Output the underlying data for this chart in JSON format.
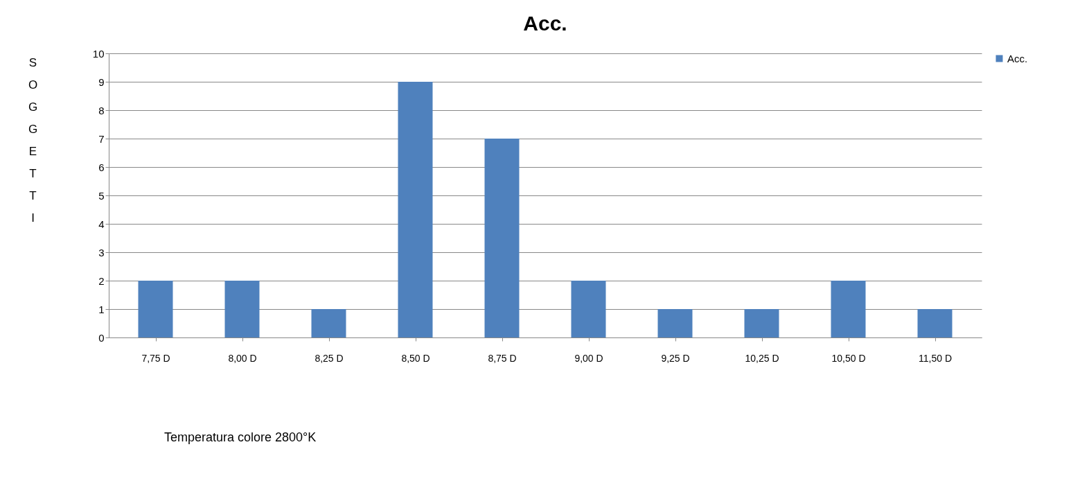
{
  "chart_data": {
    "type": "bar",
    "title": "Acc.",
    "ylabel": "SOGGETTI",
    "categories": [
      "7,75 D",
      "8,00 D",
      "8,25 D",
      "8,50 D",
      "8,75 D",
      "9,00 D",
      "9,25 D",
      "10,25 D",
      "10,50 D",
      "11,50 D"
    ],
    "series": [
      {
        "name": "Acc.",
        "color": "#4f81bd",
        "values": [
          2,
          2,
          1,
          9,
          7,
          2,
          1,
          1,
          2,
          1
        ]
      }
    ],
    "ylim": [
      0,
      10
    ],
    "yticks": [
      0,
      1,
      2,
      3,
      4,
      5,
      6,
      7,
      8,
      9,
      10
    ],
    "grid": "y",
    "legend": "right",
    "annotations": [
      "Temperatura colore 2800°K"
    ]
  }
}
